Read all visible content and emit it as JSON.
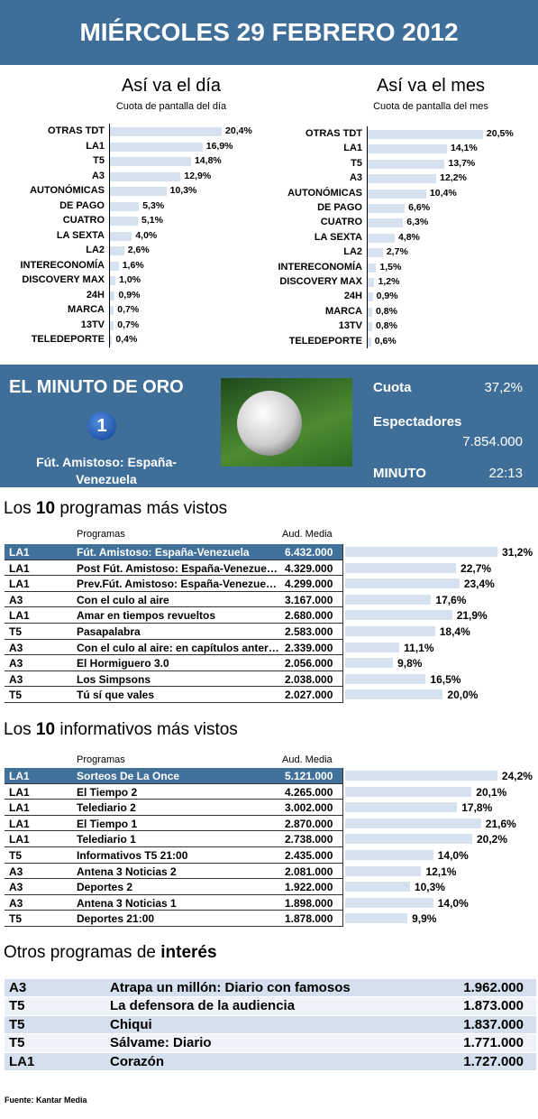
{
  "header": {
    "title": "MIÉRCOLES 29 FEBRERO 2012"
  },
  "chart_data": [
    {
      "type": "bar",
      "title": "Así va el día",
      "subtitle": "Cuota de pantalla del día",
      "color": "#d5e1ee",
      "categories": [
        "OTRAS TDT",
        "LA1",
        "T5",
        "A3",
        "AUTONÓMICAS",
        "DE PAGO",
        "CUATRO",
        "LA SEXTA",
        "LA2",
        "INTERECONOMÍA",
        "DISCOVERY MAX",
        "24H",
        "MARCA",
        "13TV",
        "TELEDEPORTE"
      ],
      "values": [
        20.4,
        16.9,
        14.8,
        12.9,
        10.3,
        5.3,
        5.1,
        4.0,
        2.6,
        1.6,
        1.0,
        0.9,
        0.7,
        0.7,
        0.4
      ],
      "value_labels": [
        "20,4%",
        "16,9%",
        "14,8%",
        "12,9%",
        "10,3%",
        "5,3%",
        "5,1%",
        "4,0%",
        "2,6%",
        "1,6%",
        "1,0%",
        "0,9%",
        "0,7%",
        "0,7%",
        "0,4%"
      ]
    },
    {
      "type": "bar",
      "title": "Así va el mes",
      "subtitle": "Cuota de pantalla del mes",
      "color": "#d5e1ee",
      "categories": [
        "OTRAS TDT",
        "LA1",
        "T5",
        "A3",
        "AUTONÓMICAS",
        "DE PAGO",
        "CUATRO",
        "LA SEXTA",
        "LA2",
        "INTERECONOMÍA",
        "DISCOVERY MAX",
        "24H",
        "MARCA",
        "13TV",
        "TELEDEPORTE"
      ],
      "values": [
        20.5,
        14.1,
        13.7,
        12.2,
        10.4,
        6.6,
        6.3,
        4.8,
        2.7,
        1.5,
        1.2,
        0.9,
        0.8,
        0.8,
        0.6
      ],
      "value_labels": [
        "20,5%",
        "14,1%",
        "13,7%",
        "12,2%",
        "10,4%",
        "6,6%",
        "6,3%",
        "4,8%",
        "2,7%",
        "1,5%",
        "1,2%",
        "0,9%",
        "0,8%",
        "0,8%",
        "0,6%"
      ]
    }
  ],
  "minuto_de_oro": {
    "title": "EL MINUTO DE ORO",
    "logo": "1",
    "program": "Fút. Amistoso: España-Venezuela",
    "cuota_label": "Cuota",
    "cuota": "37,2%",
    "espectadores_label": "Espectadores",
    "espectadores": "7.854.000",
    "minuto_label": "MINUTO",
    "minuto": "22:13"
  },
  "top_programs": {
    "title_pre": "Los",
    "title_bold": "10",
    "title_post": "programas más vistos",
    "col_program": "Programas",
    "col_audience": "Aud. Media",
    "color": "#d5e1ee",
    "rows": [
      {
        "channel": "LA1",
        "program": "Fút. Amistoso: España-Venezuela",
        "audience": "6.432.000",
        "share": 31.2,
        "share_label": "31,2%"
      },
      {
        "channel": "LA1",
        "program": "Post Fút. Amistoso: España-Venezue…",
        "audience": "4.329.000",
        "share": 22.7,
        "share_label": "22,7%"
      },
      {
        "channel": "LA1",
        "program": "Prev.Fút. Amistoso: España-Venezue…",
        "audience": "4.299.000",
        "share": 23.4,
        "share_label": "23,4%"
      },
      {
        "channel": "A3",
        "program": "Con el culo al aire",
        "audience": "3.167.000",
        "share": 17.6,
        "share_label": "17,6%"
      },
      {
        "channel": "LA1",
        "program": "Amar en tiempos revueltos",
        "audience": "2.680.000",
        "share": 21.9,
        "share_label": "21,9%"
      },
      {
        "channel": "T5",
        "program": "Pasapalabra",
        "audience": "2.583.000",
        "share": 18.4,
        "share_label": "18,4%"
      },
      {
        "channel": "A3",
        "program": "Con el culo al aire: en capítulos anter…",
        "audience": "2.339.000",
        "share": 11.1,
        "share_label": "11,1%"
      },
      {
        "channel": "A3",
        "program": "El Hormiguero 3.0",
        "audience": "2.056.000",
        "share": 9.8,
        "share_label": "9,8%"
      },
      {
        "channel": "A3",
        "program": "Los Simpsons",
        "audience": "2.038.000",
        "share": 16.5,
        "share_label": "16,5%"
      },
      {
        "channel": "T5",
        "program": "Tú sí que vales",
        "audience": "2.027.000",
        "share": 20.0,
        "share_label": "20,0%"
      }
    ]
  },
  "top_news": {
    "title_pre": "Los",
    "title_bold": "10",
    "title_post": "informativos más vistos",
    "col_program": "Programas",
    "col_audience": "Aud. Media",
    "color": "#d5e1ee",
    "rows": [
      {
        "channel": "LA1",
        "program": "Sorteos De La Once",
        "audience": "5.121.000",
        "share": 24.2,
        "share_label": "24,2%"
      },
      {
        "channel": "LA1",
        "program": "El Tiempo 2",
        "audience": "4.265.000",
        "share": 20.1,
        "share_label": "20,1%"
      },
      {
        "channel": "LA1",
        "program": "Telediario 2",
        "audience": "3.002.000",
        "share": 17.8,
        "share_label": "17,8%"
      },
      {
        "channel": "LA1",
        "program": "El Tiempo 1",
        "audience": "2.870.000",
        "share": 21.6,
        "share_label": "21,6%"
      },
      {
        "channel": "LA1",
        "program": "Telediario 1",
        "audience": "2.738.000",
        "share": 20.2,
        "share_label": "20,2%"
      },
      {
        "channel": "T5",
        "program": "Informativos T5 21:00",
        "audience": "2.435.000",
        "share": 14.0,
        "share_label": "14,0%"
      },
      {
        "channel": "A3",
        "program": "Antena 3 Noticias 2",
        "audience": "2.081.000",
        "share": 12.1,
        "share_label": "12,1%"
      },
      {
        "channel": "A3",
        "program": "Deportes 2",
        "audience": "1.922.000",
        "share": 10.3,
        "share_label": "10,3%"
      },
      {
        "channel": "A3",
        "program": "Antena 3 Noticias 1",
        "audience": "1.898.000",
        "share": 14.0,
        "share_label": "14,0%"
      },
      {
        "channel": "T5",
        "program": "Deportes 21:00",
        "audience": "1.878.000",
        "share": 9.9,
        "share_label": "9,9%"
      }
    ]
  },
  "other_programs": {
    "title_pre": "Otros programas de",
    "title_bold": "interés",
    "rows": [
      {
        "channel": "A3",
        "program": "Atrapa un millón: Diario con famosos",
        "audience": "1.962.000"
      },
      {
        "channel": "T5",
        "program": "La defensora de la audiencia",
        "audience": "1.873.000"
      },
      {
        "channel": "T5",
        "program": "Chiqui",
        "audience": "1.837.000"
      },
      {
        "channel": "T5",
        "program": "Sálvame: Diario",
        "audience": "1.771.000"
      },
      {
        "channel": "LA1",
        "program": "Corazón",
        "audience": "1.727.000"
      }
    ]
  },
  "footer": {
    "label": "Fuente:",
    "source": "Kantar Media"
  }
}
